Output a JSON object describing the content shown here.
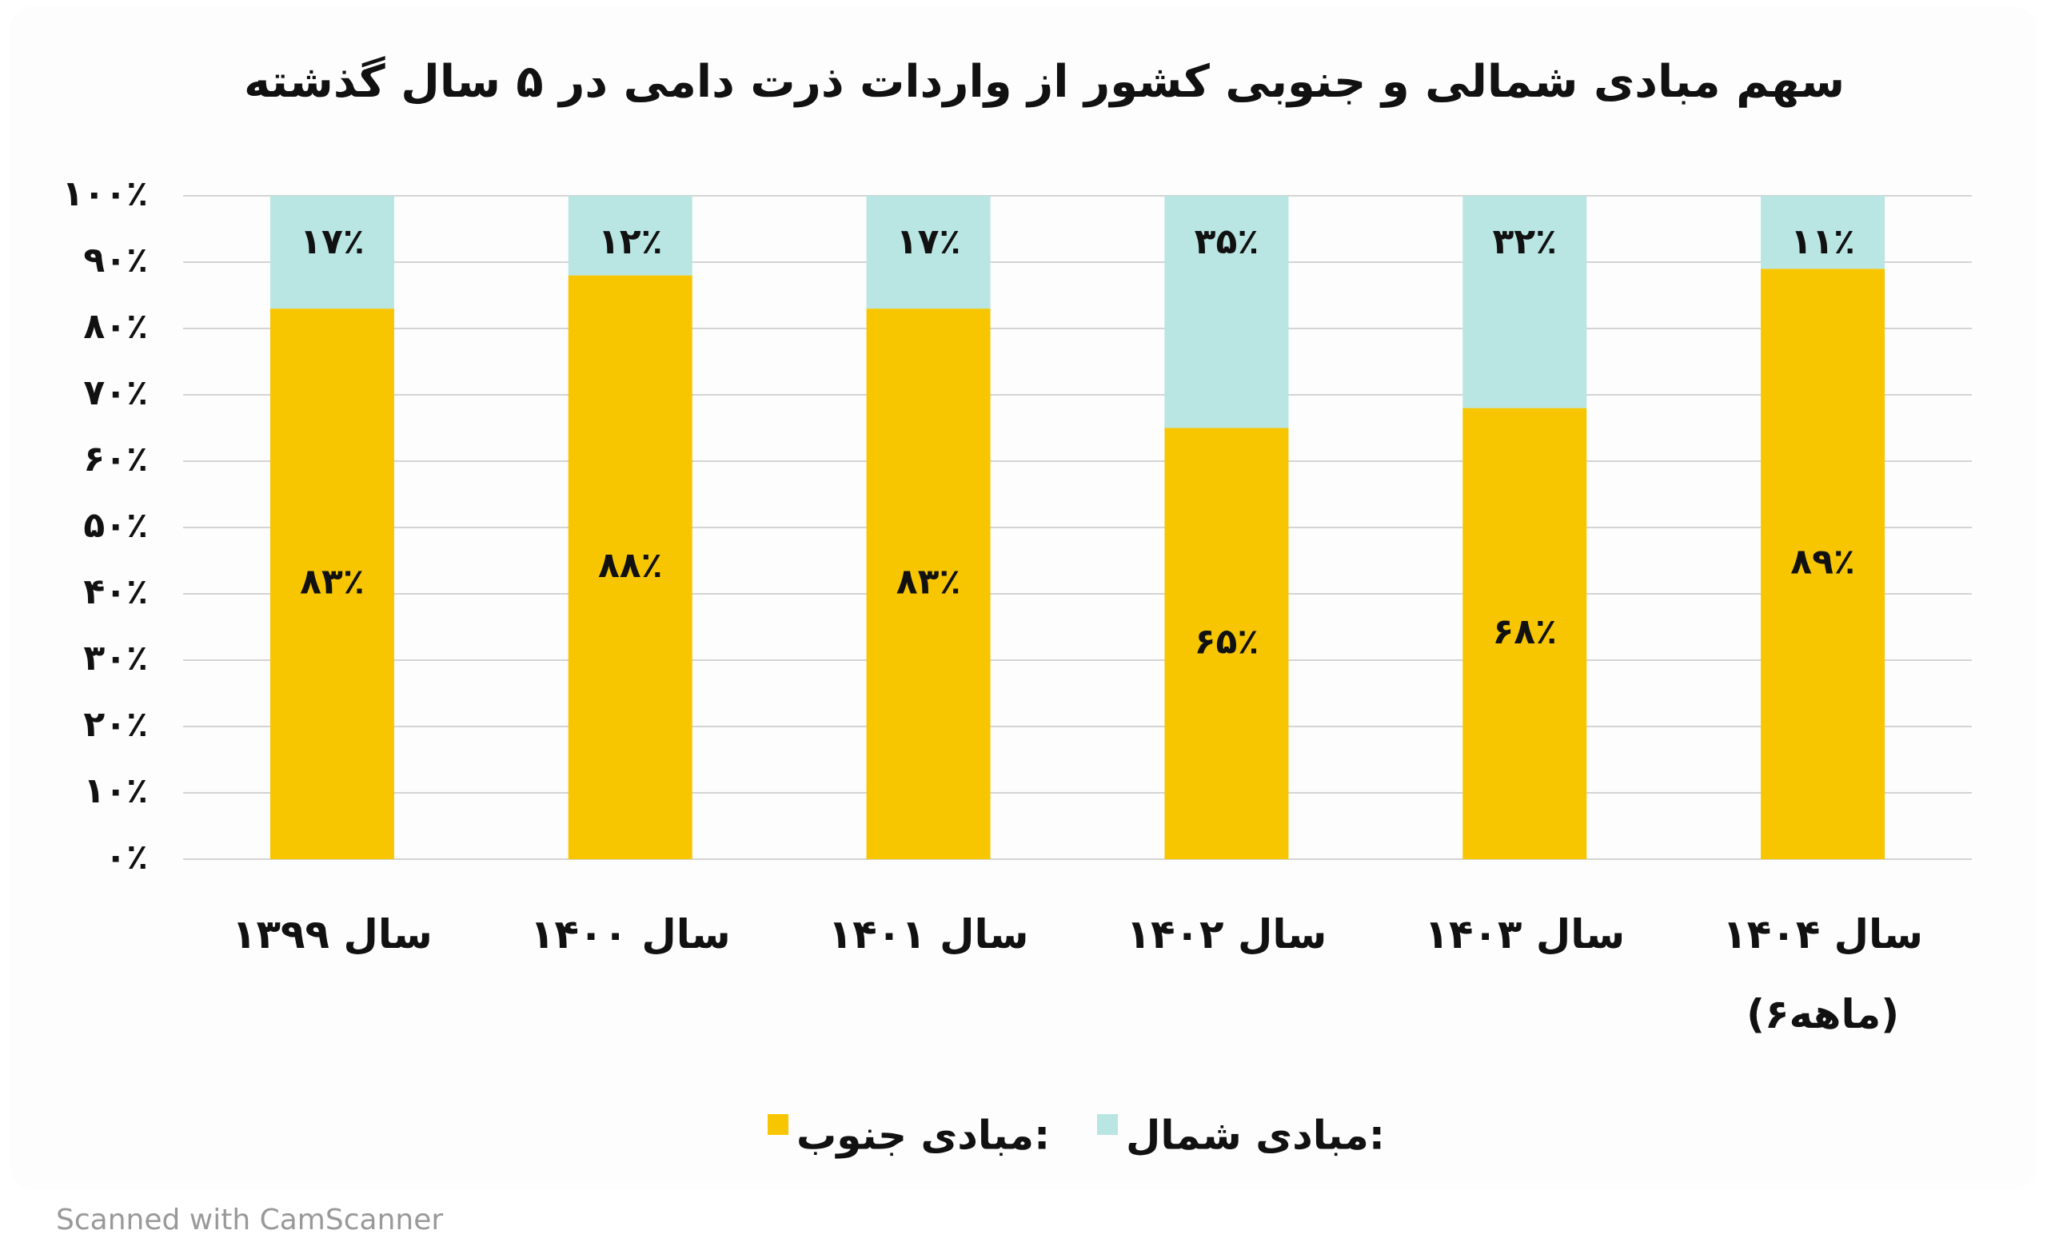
{
  "chart_data": {
    "type": "stacked_bar",
    "title": "سهم مبادی شمالی و جنوبی کشور از واردات ذرت دامی در ۵ سال گذشته",
    "categories": [
      "سال ۱۳۹۹",
      "سال ۱۴۰۰",
      "سال ۱۴۰۱",
      "سال ۱۴۰۲",
      "سال ۱۴۰۳",
      "سال ۱۴۰۴\n(۶ماهه)"
    ],
    "series": [
      {
        "name": "مبادی جنوب:",
        "color": "#f7c600",
        "values": [
          83,
          88,
          83,
          65,
          68,
          89
        ],
        "value_labels": [
          "۸۳٪",
          "۸۸٪",
          "۸۳٪",
          "۶۵٪",
          "۶۸٪",
          "۸۹٪"
        ]
      },
      {
        "name": "مبادی شمال:",
        "color": "#b9e5e3",
        "values": [
          17,
          12,
          17,
          35,
          32,
          11
        ],
        "value_labels": [
          "۱۷٪",
          "۱۲٪",
          "۱۷٪",
          "۳۵٪",
          "۳۲٪",
          "۱۱٪"
        ]
      }
    ],
    "ylim": [
      0,
      100
    ],
    "yticks": [
      {
        "value": 0,
        "label": "۰٪"
      },
      {
        "value": 10,
        "label": "۱۰٪"
      },
      {
        "value": 20,
        "label": "۲۰٪"
      },
      {
        "value": 30,
        "label": "۳۰٪"
      },
      {
        "value": 40,
        "label": "۴۰٪"
      },
      {
        "value": 50,
        "label": "۵۰٪"
      },
      {
        "value": 60,
        "label": "۶۰٪"
      },
      {
        "value": 70,
        "label": "۷۰٪"
      },
      {
        "value": 80,
        "label": "۸۰٪"
      },
      {
        "value": 90,
        "label": "۹۰٪"
      },
      {
        "value": 100,
        "label": "۱۰۰٪"
      }
    ],
    "grid": true
  },
  "watermark": "Scanned with CamScanner"
}
